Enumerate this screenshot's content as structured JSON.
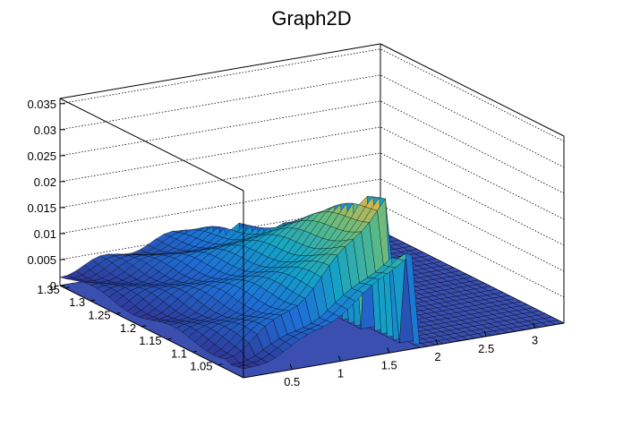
{
  "chart_data": {
    "type": "surface",
    "title": "Graph2D",
    "axes": {
      "x": {
        "range": [
          0,
          3.3
        ],
        "ticks": [
          "0.5",
          "1",
          "1.5",
          "2",
          "2.5",
          "3"
        ],
        "tick_values": [
          0.5,
          1,
          1.5,
          2,
          2.5,
          3
        ]
      },
      "y": {
        "range": [
          1.0,
          1.36
        ],
        "ticks": [
          "1.05",
          "1.1",
          "1.15",
          "1.2",
          "1.25",
          "1.3",
          "1.35"
        ],
        "tick_values": [
          1.05,
          1.1,
          1.15,
          1.2,
          1.25,
          1.3,
          1.35
        ]
      },
      "z": {
        "range": [
          0,
          0.036
        ],
        "ticks": [
          "0",
          "0.005",
          "0.01",
          "0.015",
          "0.02",
          "0.025",
          "0.03",
          "0.035"
        ],
        "tick_values": [
          0,
          0.005,
          0.01,
          0.015,
          0.02,
          0.025,
          0.03,
          0.035
        ]
      }
    },
    "grid": true,
    "palette": "kBird",
    "surface_description_points": [
      {
        "x": 0.1,
        "y": 1.35,
        "z": 0.007
      },
      {
        "x": 0.5,
        "y": 1.3,
        "z": 0.008
      },
      {
        "x": 1.0,
        "y": 1.25,
        "z": 0.012
      },
      {
        "x": 1.3,
        "y": 1.0,
        "z": 0.019
      },
      {
        "x": 1.6,
        "y": 1.0,
        "z": 0.031
      },
      {
        "x": 1.7,
        "y": 1.0,
        "z": 0.0
      },
      {
        "x": 3.0,
        "y": 1.0,
        "z": 0.0
      }
    ]
  },
  "colors": {
    "frame": "#000000",
    "grid": "#000000",
    "floor": "#3a4fb0",
    "mesh": "#000000"
  }
}
